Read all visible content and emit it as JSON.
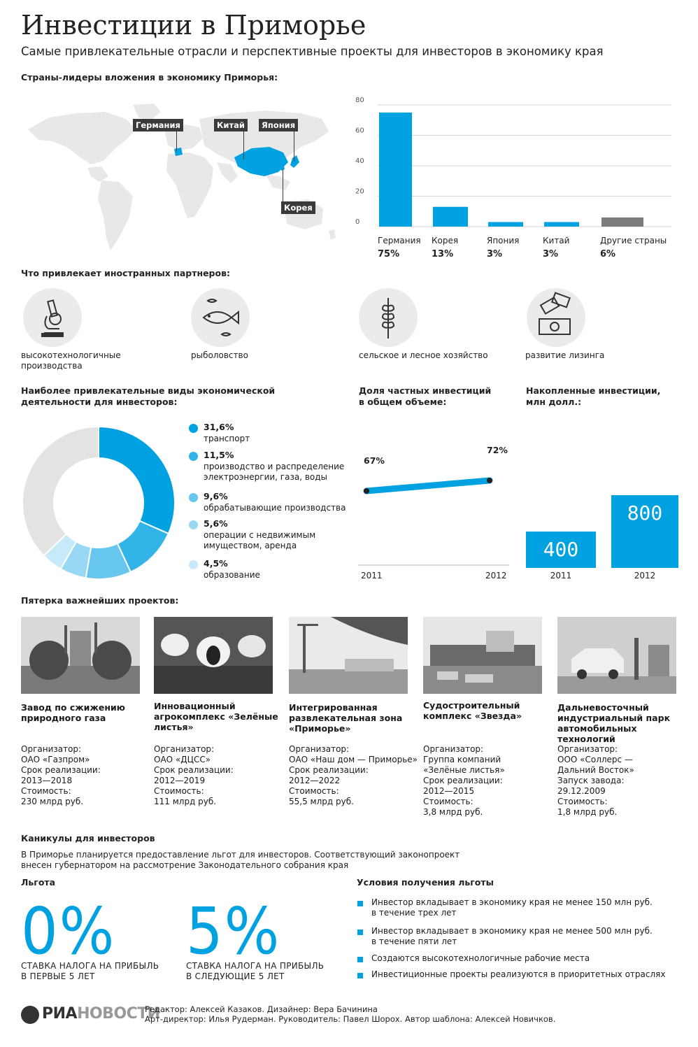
{
  "header": {
    "title": "Инвестиции в Приморье",
    "subtitle": "Самые привлекательные отрасли и перспективные проекты для инвесторов в экономику края"
  },
  "countries": {
    "heading": "Страны-лидеры вложения в экономику Приморья:",
    "map_labels": [
      "Германия",
      "Китай",
      "Япония",
      "Корея"
    ]
  },
  "chart_data": [
    {
      "type": "bar",
      "categories": [
        "Германия",
        "Корея",
        "Япония",
        "Китай",
        "Другие страны"
      ],
      "values": [
        75,
        13,
        3,
        3,
        6
      ],
      "value_labels": [
        "75%",
        "13%",
        "3%",
        "3%",
        "6%"
      ],
      "ylim": [
        0,
        80
      ],
      "yticks": [
        0,
        20,
        40,
        60,
        80
      ],
      "grid": true,
      "colors": [
        "#00a1e1",
        "#00a1e1",
        "#00a1e1",
        "#00a1e1",
        "#7b7b7b"
      ]
    },
    {
      "type": "pie",
      "title": "Наиболее привлекательные виды экономической деятельности для инвесторов:",
      "slices": [
        {
          "value": 31.6,
          "label": "31,6%",
          "name": "транспорт",
          "color": "#00a1e1"
        },
        {
          "value": 11.5,
          "label": "11,5%",
          "name": "производство и распределение электроэнергии, газа, воды",
          "color": "#33b4e8"
        },
        {
          "value": 9.6,
          "label": "9,6%",
          "name": "обрабатывающие производства",
          "color": "#66c6ee"
        },
        {
          "value": 5.6,
          "label": "5,6%",
          "name": "операции с недвижимым имуществом, аренда",
          "color": "#99d8f4"
        },
        {
          "value": 4.5,
          "label": "4,5%",
          "name": "образование",
          "color": "#c6eafa"
        },
        {
          "value": 37.2,
          "color": "#e3e3e3"
        }
      ]
    },
    {
      "type": "line",
      "title": "Доля частных инвестиций в общем объеме:",
      "x": [
        "2011",
        "2012"
      ],
      "values": [
        67,
        72
      ],
      "value_labels": [
        "67%",
        "72%"
      ],
      "color": "#00a1e1"
    },
    {
      "type": "bar",
      "title": "Накопленные инвестиции, млн долл.:",
      "categories": [
        "2011",
        "2012"
      ],
      "values": [
        400,
        800
      ],
      "value_labels": [
        "400",
        "800"
      ],
      "color": "#00a1e1"
    }
  ],
  "attractions": {
    "heading": "Что привлекает иностранных партнеров:",
    "items": [
      {
        "icon": "microscope-icon",
        "label": "высокотехнологичные производства"
      },
      {
        "icon": "fish-icon",
        "label": "рыболовство"
      },
      {
        "icon": "wheat-icon",
        "label": "сельское и лесное хозяйство"
      },
      {
        "icon": "money-icon",
        "label": "развитие лизинга"
      }
    ]
  },
  "projects": {
    "heading": "Пятерка важнейших проектов:",
    "items": [
      {
        "title": "Завод по сжижению природного газа",
        "info": [
          "Организатор:",
          "ОАО «Газпром»",
          "Срок реализации:",
          "2013—2018",
          "Стоимость:",
          "230 млрд руб."
        ]
      },
      {
        "title": "Инновационный агрокомплекс «Зелёные листья»",
        "info": [
          "Организатор:",
          "ОАО «ДЦСС»",
          "Срок реализации:",
          "2012—2019",
          "Стоимость:",
          "111 млрд руб."
        ]
      },
      {
        "title": "Интегрированная развлекательная зона «Приморье»",
        "info": [
          "Организатор:",
          "ОАО «Наш дом — Приморье»",
          "Срок реализации:",
          "2012—2022",
          "Стоимость:",
          "55,5 млрд руб."
        ]
      },
      {
        "title": "Судостроительный комплекс «Звезда»",
        "info": [
          "Организатор:",
          "Группа компаний",
          "«Зелёные листья»",
          "Срок реализации:",
          "2012—2015",
          "Стоимость:",
          "3,8 млрд руб."
        ]
      },
      {
        "title": "Дальневосточный индустриальный парк автомобильных технологий",
        "info": [
          "Организатор:",
          "ООО «Соллерс —",
          "Дальний Восток»",
          "Запуск завода:",
          "29.12.2009",
          "Стоимость:",
          "1,8 млрд руб."
        ]
      }
    ]
  },
  "holidays": {
    "heading": "Каникулы для инвесторов",
    "text1": "В Приморье планируется предоставление льгот для инвесторов. Соответствующий законопроект",
    "text2": "внесен губернатором на рассмотрение Законодательного собрания края",
    "benefit_heading": "Льгота",
    "benefits": [
      {
        "value": "0%",
        "line1": "СТАВКА НАЛОГА НА ПРИБЫЛЬ",
        "line2": "В ПЕРВЫЕ 5 ЛЕТ"
      },
      {
        "value": "5%",
        "line1": "СТАВКА НАЛОГА НА ПРИБЫЛЬ",
        "line2": "В СЛЕДУЮЩИЕ 5 ЛЕТ"
      }
    ],
    "conditions_heading": "Условия получения льготы",
    "conditions": [
      [
        "Инвестор вкладывает в экономику края не менее 150 млн руб.",
        "в течение трех лет"
      ],
      [
        "Инвестор вкладывает в экономику края не менее 500 млн руб.",
        "в течение пяти лет"
      ],
      [
        "Создаются высокотехнологичные рабочие места"
      ],
      [
        "Инвестиционные проекты реализуются в приоритетных отраслях"
      ]
    ]
  },
  "footer": {
    "logo_a": "РИА",
    "logo_b": "НОВОСТИ",
    "credits1": "Редактор: Алексей Казаков. Дизайнер: Вера Бачинина",
    "credits2": "Арт-директор: Илья Рудерман. Руководитель: Павел Шорох. Автор шаблона: Алексей Новичков."
  }
}
